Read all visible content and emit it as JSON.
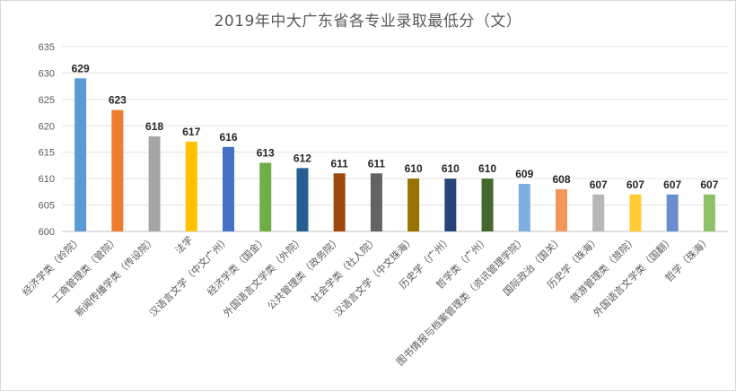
{
  "chart_data": {
    "type": "bar",
    "title": "2019年中大广东省各专业录取最低分（文）",
    "xlabel": "",
    "ylabel": "",
    "ylim": [
      600,
      635
    ],
    "yticks": [
      600,
      605,
      610,
      615,
      620,
      625,
      630,
      635
    ],
    "grid": true,
    "legend": "none",
    "categories": [
      "经济学类（岭院）",
      "工商管理类（管院）",
      "新闻传播学类（传设院）",
      "法学",
      "汉语言文学（中文广州）",
      "经济学类（国金）",
      "外国语言文学类（外院）",
      "公共管理类（政务院）",
      "社会学类（社人院）",
      "汉语言文学（中文珠海）",
      "历史学（广州）",
      "哲学类（广州）",
      "图书情报与档案管理类（资讯管理学院）",
      "国际政治（国关）",
      "历史学（珠海）",
      "旅游管理类（旅院）",
      "外国语言文学类（国翻）",
      "哲学（珠海）"
    ],
    "values": [
      629,
      623,
      618,
      617,
      616,
      613,
      612,
      611,
      611,
      610,
      610,
      610,
      609,
      608,
      607,
      607,
      607,
      607
    ],
    "colors": [
      "#5b9bd5",
      "#ed7d31",
      "#a5a5a5",
      "#ffc000",
      "#4472c4",
      "#70ad47",
      "#255e91",
      "#9e480e",
      "#636363",
      "#997300",
      "#264478",
      "#43682b",
      "#7cafdd",
      "#f1975a",
      "#b7b7b7",
      "#ffcd33",
      "#698ed0",
      "#8cc168"
    ]
  }
}
